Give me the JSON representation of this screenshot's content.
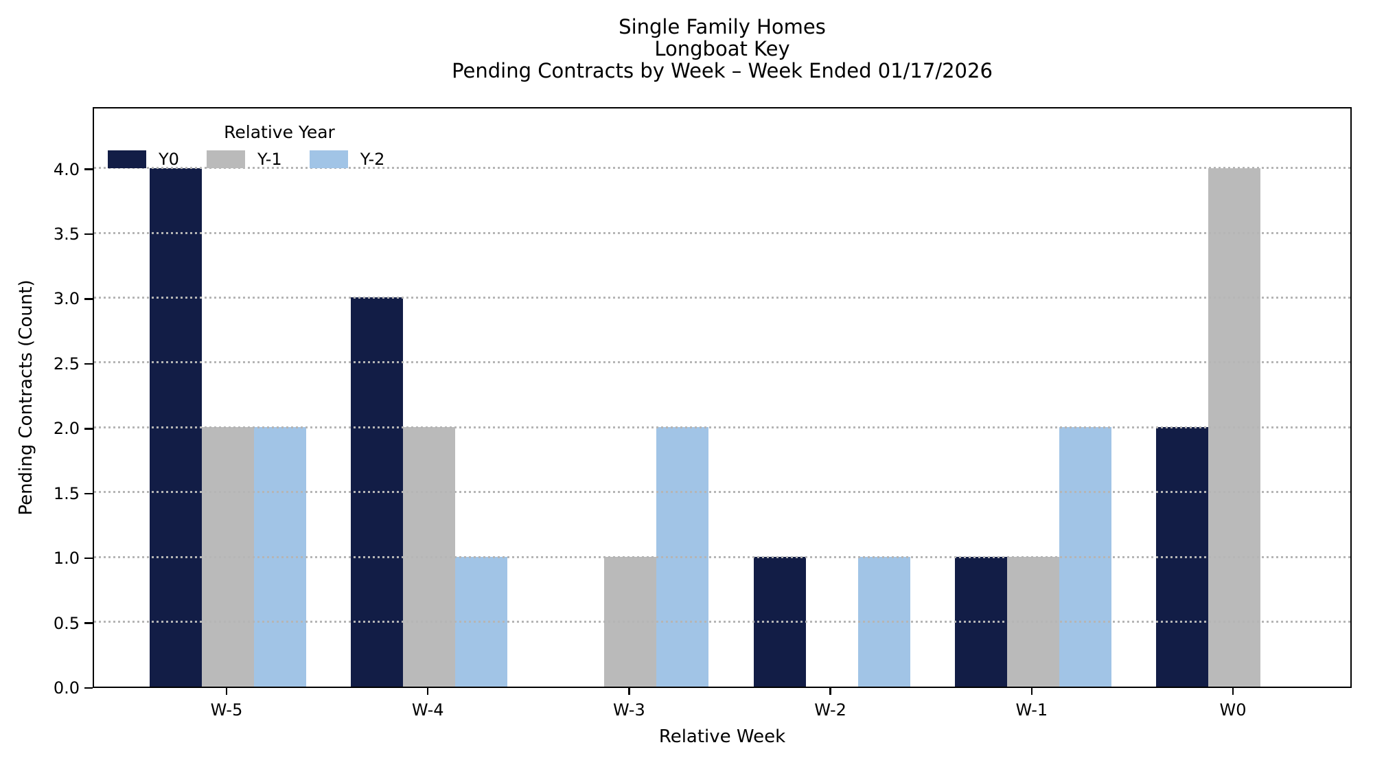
{
  "title_lines": [
    "Single Family Homes",
    "Longboat Key",
    "Pending Contracts by Week – Week Ended 01/17/2026"
  ],
  "legend": {
    "title": "Relative Year"
  },
  "chart_data": {
    "type": "bar",
    "title": "Single Family Homes / Longboat Key / Pending Contracts by Week – Week Ended 01/17/2026",
    "xlabel": "Relative Week",
    "ylabel": "Pending Contracts (Count)",
    "categories": [
      "W-5",
      "W-4",
      "W-3",
      "W-2",
      "W-1",
      "W0"
    ],
    "series": [
      {
        "name": "Y0",
        "color": "#121d46",
        "values": [
          4,
          3,
          0,
          1,
          1,
          2
        ]
      },
      {
        "name": "Y-1",
        "color": "#bababa",
        "values": [
          2,
          2,
          1,
          0,
          1,
          4
        ]
      },
      {
        "name": "Y-2",
        "color": "#a1c4e6",
        "values": [
          2,
          1,
          2,
          1,
          2,
          0
        ]
      }
    ],
    "ylim": [
      0,
      4.48
    ],
    "yticks": [
      0.0,
      0.5,
      1.0,
      1.5,
      2.0,
      2.5,
      3.0,
      3.5,
      4.0
    ],
    "grid": "horizontal-dotted",
    "legend_position": "upper-left-inside",
    "colors": {
      "grid": "#b5b5b5",
      "axis": "#000000",
      "background": "#ffffff"
    }
  }
}
